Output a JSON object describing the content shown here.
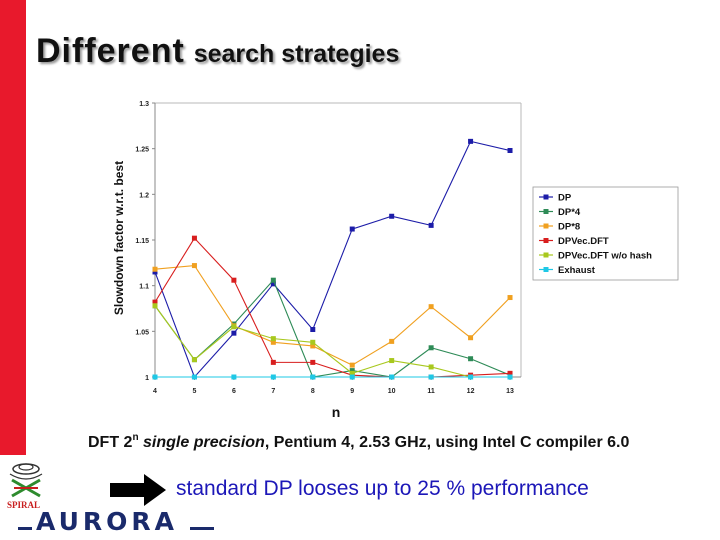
{
  "slide": {
    "title_big": "Different",
    "title_small": "search strategies",
    "caption": {
      "prefix": "DFT 2",
      "exponent": "n",
      "italic": "single precision",
      "rest": ", Pentium 4, 2.53 GHz, using Intel C compiler 6.0"
    },
    "conclusion": "standard DP looses up to 25 % performance",
    "logo_text": "AURORA",
    "emblem_text": "SPIRAL"
  },
  "colors": {
    "accent_bar": "#e8192c",
    "conclusion_text": "#1c17b8",
    "arrow": "#000000"
  },
  "icons": {
    "arrow": "right-arrow-icon",
    "emblem": "spiral-logo-icon",
    "logo": "aurora-logo-icon"
  },
  "chart_data": {
    "type": "line",
    "x": [
      4,
      5,
      6,
      7,
      8,
      9,
      10,
      11,
      12,
      13
    ],
    "xlabel": "n",
    "ylabel": "Slowdown factor w.r.t. best",
    "ylim": [
      1,
      1.3
    ],
    "yticks": [
      "1",
      "1.05",
      "1.1",
      "1.15",
      "1.2",
      "1.25",
      "1.3"
    ],
    "grid": false,
    "legend": "right",
    "series": [
      {
        "name": "DP",
        "color": "#1c1ca8",
        "values": [
          1.115,
          1.0,
          1.048,
          1.102,
          1.052,
          1.162,
          1.176,
          1.166,
          1.258,
          1.248
        ]
      },
      {
        "name": "DP*4",
        "color": "#2e8b57",
        "values": [
          1.078,
          1.019,
          1.058,
          1.106,
          1.0,
          1.007,
          1.0,
          1.032,
          1.02,
          1.002
        ]
      },
      {
        "name": "DP*8",
        "color": "#f0a020",
        "values": [
          1.118,
          1.122,
          1.056,
          1.038,
          1.034,
          1.013,
          1.039,
          1.077,
          1.043,
          1.087
        ]
      },
      {
        "name": "DPVec.DFT",
        "color": "#d81e1e",
        "values": [
          1.082,
          1.152,
          1.106,
          1.016,
          1.016,
          1.002,
          1.0,
          1.0,
          1.002,
          1.004
        ]
      },
      {
        "name": "DPVec.DFT w/o hash",
        "color": "#a8c81e",
        "values": [
          1.078,
          1.019,
          1.055,
          1.042,
          1.038,
          1.004,
          1.018,
          1.011,
          1.0,
          1.0
        ]
      },
      {
        "name": "Exhaust",
        "color": "#1ec8e6",
        "values": [
          1.0,
          1.0,
          1.0,
          1.0,
          1.0,
          1.0,
          1.0,
          1.0,
          1.0,
          1.0
        ]
      }
    ]
  }
}
